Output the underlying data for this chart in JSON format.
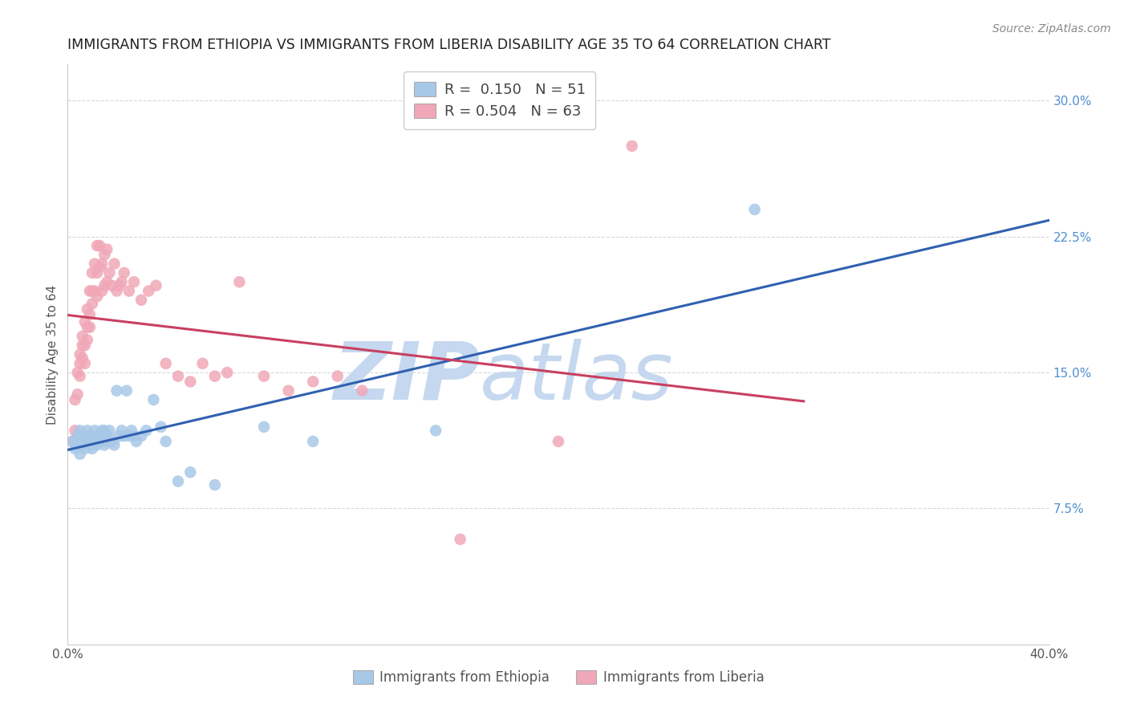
{
  "title": "IMMIGRANTS FROM ETHIOPIA VS IMMIGRANTS FROM LIBERIA DISABILITY AGE 35 TO 64 CORRELATION CHART",
  "source": "Source: ZipAtlas.com",
  "ylabel": "Disability Age 35 to 64",
  "xlim": [
    0.0,
    0.4
  ],
  "ylim": [
    0.0,
    0.32
  ],
  "xticks": [
    0.0,
    0.08,
    0.16,
    0.24,
    0.32,
    0.4
  ],
  "yticks": [
    0.0,
    0.075,
    0.15,
    0.225,
    0.3
  ],
  "background_color": "#ffffff",
  "grid_color": "#d8d8d8",
  "watermark_zip": "ZIP",
  "watermark_atlas": "atlas",
  "watermark_color_zip": "#c5d8ef",
  "watermark_color_atlas": "#c5d8ef",
  "ethiopia_color": "#a8c8e8",
  "liberia_color": "#f0a8b8",
  "ethiopia_line_color": "#3060b0",
  "liberia_line_color": "#c84060",
  "legend_R_ethiopia": "0.150",
  "legend_N_ethiopia": "51",
  "legend_R_liberia": "0.504",
  "legend_N_liberia": "63",
  "ethiopia_scatter_x": [
    0.002,
    0.003,
    0.004,
    0.005,
    0.005,
    0.006,
    0.006,
    0.007,
    0.007,
    0.008,
    0.008,
    0.009,
    0.009,
    0.01,
    0.01,
    0.011,
    0.011,
    0.012,
    0.012,
    0.013,
    0.013,
    0.014,
    0.014,
    0.015,
    0.015,
    0.016,
    0.016,
    0.017,
    0.018,
    0.019,
    0.02,
    0.021,
    0.022,
    0.023,
    0.024,
    0.025,
    0.026,
    0.027,
    0.028,
    0.03,
    0.032,
    0.035,
    0.038,
    0.04,
    0.045,
    0.05,
    0.06,
    0.08,
    0.1,
    0.15,
    0.28
  ],
  "ethiopia_scatter_y": [
    0.112,
    0.108,
    0.115,
    0.105,
    0.118,
    0.11,
    0.112,
    0.108,
    0.115,
    0.112,
    0.118,
    0.11,
    0.115,
    0.112,
    0.108,
    0.115,
    0.118,
    0.11,
    0.112,
    0.115,
    0.112,
    0.118,
    0.115,
    0.11,
    0.118,
    0.115,
    0.112,
    0.118,
    0.112,
    0.11,
    0.14,
    0.115,
    0.118,
    0.115,
    0.14,
    0.115,
    0.118,
    0.115,
    0.112,
    0.115,
    0.118,
    0.135,
    0.12,
    0.112,
    0.09,
    0.095,
    0.088,
    0.12,
    0.112,
    0.118,
    0.24
  ],
  "liberia_scatter_x": [
    0.002,
    0.003,
    0.003,
    0.004,
    0.004,
    0.005,
    0.005,
    0.005,
    0.006,
    0.006,
    0.006,
    0.007,
    0.007,
    0.007,
    0.008,
    0.008,
    0.008,
    0.009,
    0.009,
    0.009,
    0.01,
    0.01,
    0.01,
    0.011,
    0.011,
    0.012,
    0.012,
    0.012,
    0.013,
    0.013,
    0.014,
    0.014,
    0.015,
    0.015,
    0.016,
    0.016,
    0.017,
    0.018,
    0.019,
    0.02,
    0.021,
    0.022,
    0.023,
    0.025,
    0.027,
    0.03,
    0.033,
    0.036,
    0.04,
    0.045,
    0.05,
    0.055,
    0.06,
    0.065,
    0.07,
    0.08,
    0.09,
    0.1,
    0.11,
    0.12,
    0.16,
    0.2,
    0.23
  ],
  "liberia_scatter_y": [
    0.112,
    0.118,
    0.135,
    0.138,
    0.15,
    0.148,
    0.155,
    0.16,
    0.158,
    0.165,
    0.17,
    0.155,
    0.165,
    0.178,
    0.168,
    0.175,
    0.185,
    0.175,
    0.182,
    0.195,
    0.188,
    0.195,
    0.205,
    0.195,
    0.21,
    0.192,
    0.205,
    0.22,
    0.208,
    0.22,
    0.195,
    0.21,
    0.198,
    0.215,
    0.2,
    0.218,
    0.205,
    0.198,
    0.21,
    0.195,
    0.198,
    0.2,
    0.205,
    0.195,
    0.2,
    0.19,
    0.195,
    0.198,
    0.155,
    0.148,
    0.145,
    0.155,
    0.148,
    0.15,
    0.2,
    0.148,
    0.14,
    0.145,
    0.148,
    0.14,
    0.058,
    0.112,
    0.275
  ]
}
